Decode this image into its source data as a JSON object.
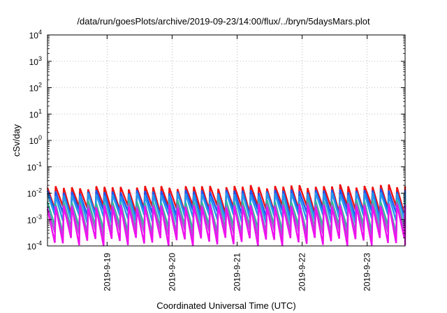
{
  "chart_data": {
    "type": "line",
    "title": "/data/run/goesPlots/archive/2019-09-23/14:00/flux/../bryn/5daysMars.plot",
    "xlabel": "Coordinated Universal Time (UTC)",
    "ylabel": "cSv/day",
    "x_range": [
      "2019-09-18T02:00",
      "2019-09-23T14:00"
    ],
    "x_ticks": [
      "2019-9-19",
      "2019-9-20",
      "2019-9-21",
      "2019-9-22",
      "2019-9-23"
    ],
    "x_tick_dates": [
      "2019-09-19",
      "2019-09-20",
      "2019-09-21",
      "2019-09-22",
      "2019-09-23"
    ],
    "y_scale": "log",
    "ylim": [
      0.0001,
      10000
    ],
    "y_ticks": [
      {
        "value": 0.0001,
        "base": "10",
        "exp": "-4"
      },
      {
        "value": 0.001,
        "base": "10",
        "exp": "-3"
      },
      {
        "value": 0.01,
        "base": "10",
        "exp": "-2"
      },
      {
        "value": 0.1,
        "base": "10",
        "exp": "-1"
      },
      {
        "value": 1,
        "base": "10",
        "exp": "0"
      },
      {
        "value": 10,
        "base": "10",
        "exp": "1"
      },
      {
        "value": 100,
        "base": "10",
        "exp": "2"
      },
      {
        "value": 1000,
        "base": "10",
        "exp": "3"
      },
      {
        "value": 10000,
        "base": "10",
        "exp": "4"
      }
    ],
    "grid": true,
    "sawtooth_period_hours": 3,
    "series": [
      {
        "color": "#ee1111",
        "peak_start": 0.016,
        "peak_end": 0.019,
        "trough": 0.0025
      },
      {
        "color": "#2255ee",
        "peak_start": 0.011,
        "peak_end": 0.013,
        "trough": 0.0017
      },
      {
        "color": "#2299ee",
        "peak_start": 0.0085,
        "peak_end": 0.01,
        "trough": 0.0011
      },
      {
        "color": "#33bb99",
        "peak_start": 0.0045,
        "peak_end": 0.005,
        "trough": 0.00045
      },
      {
        "color": "#9966cc",
        "peak_start": 0.0035,
        "peak_end": 0.004,
        "trough": 0.0003
      },
      {
        "color": "#ee11ee",
        "peak_start": 0.003,
        "peak_end": 0.0035,
        "trough": 0.00015
      }
    ]
  }
}
